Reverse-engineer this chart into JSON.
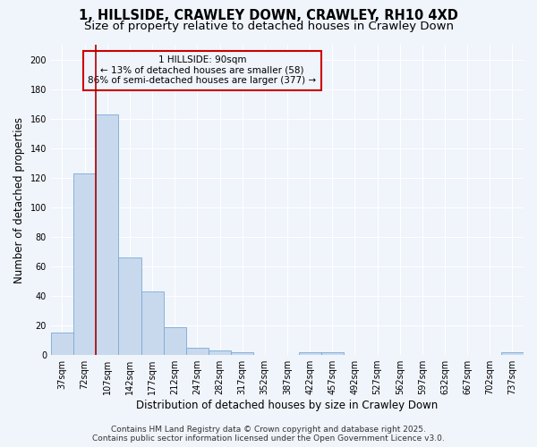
{
  "title_line1": "1, HILLSIDE, CRAWLEY DOWN, CRAWLEY, RH10 4XD",
  "title_line2": "Size of property relative to detached houses in Crawley Down",
  "xlabel": "Distribution of detached houses by size in Crawley Down",
  "ylabel": "Number of detached properties",
  "bar_color": "#c8d9ee",
  "bar_edge_color": "#7aaad4",
  "categories": [
    "37sqm",
    "72sqm",
    "107sqm",
    "142sqm",
    "177sqm",
    "212sqm",
    "247sqm",
    "282sqm",
    "317sqm",
    "352sqm",
    "387sqm",
    "422sqm",
    "457sqm",
    "492sqm",
    "527sqm",
    "562sqm",
    "597sqm",
    "632sqm",
    "667sqm",
    "702sqm",
    "737sqm"
  ],
  "values": [
    15,
    123,
    163,
    66,
    43,
    19,
    5,
    3,
    2,
    0,
    0,
    2,
    2,
    0,
    0,
    0,
    0,
    0,
    0,
    0,
    2
  ],
  "ylim": [
    0,
    210
  ],
  "yticks": [
    0,
    20,
    40,
    60,
    80,
    100,
    120,
    140,
    160,
    180,
    200
  ],
  "annotation_text_line1": "1 HILLSIDE: 90sqm",
  "annotation_text_line2": "← 13% of detached houses are smaller (58)",
  "annotation_text_line3": "86% of semi-detached houses are larger (377) →",
  "footer_line1": "Contains HM Land Registry data © Crown copyright and database right 2025.",
  "footer_line2": "Contains public sector information licensed under the Open Government Licence v3.0.",
  "background_color": "#f0f4fb",
  "grid_color": "#ffffff",
  "vline_color": "#aa0000",
  "annotation_border_color": "#cc0000",
  "title_fontsize": 10.5,
  "subtitle_fontsize": 9.5,
  "axis_label_fontsize": 8.5,
  "tick_fontsize": 7,
  "annotation_fontsize": 7.5,
  "footer_fontsize": 6.5
}
